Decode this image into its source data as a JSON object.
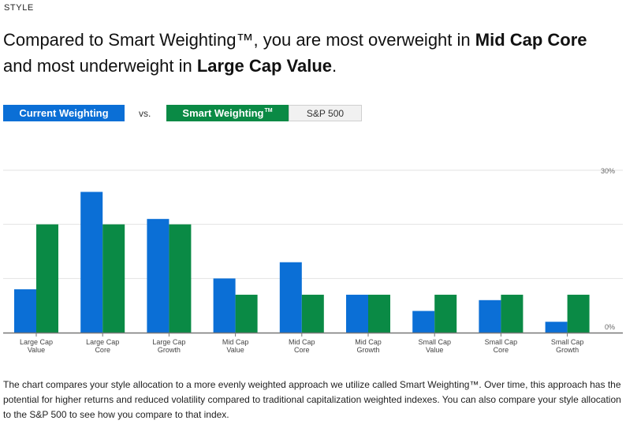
{
  "section_label": "STYLE",
  "headline": {
    "prefix": "Compared to Smart Weighting™, you are most overweight in ",
    "overweight": "Mid Cap Core",
    "middle": " and most underweight in ",
    "underweight": "Large Cap Value",
    "suffix": "."
  },
  "toggle": {
    "current_label": "Current Weighting",
    "vs_label": "vs.",
    "smart_label": "Smart Weighting",
    "smart_tm": "TM",
    "sp_label": "S&P 500"
  },
  "colors": {
    "current": "#0b6fd6",
    "smart": "#0a8a45",
    "grid": "#e3e3e3",
    "axis": "#777777"
  },
  "chart_data": {
    "type": "bar",
    "categories": [
      [
        "Large Cap",
        "Value"
      ],
      [
        "Large Cap",
        "Core"
      ],
      [
        "Large Cap",
        "Growth"
      ],
      [
        "Mid Cap",
        "Value"
      ],
      [
        "Mid Cap",
        "Core"
      ],
      [
        "Mid Cap",
        "Growth"
      ],
      [
        "Small Cap",
        "Value"
      ],
      [
        "Small Cap",
        "Core"
      ],
      [
        "Small Cap",
        "Growth"
      ]
    ],
    "series": [
      {
        "name": "Current Weighting",
        "values": [
          8,
          26,
          21,
          10,
          13,
          7,
          4,
          6,
          2
        ]
      },
      {
        "name": "Smart Weighting",
        "values": [
          20,
          20,
          20,
          7,
          7,
          7,
          7,
          7,
          7
        ]
      }
    ],
    "ylim": [
      0,
      30
    ],
    "yticks": [
      {
        "value": 30,
        "label": "30%"
      },
      {
        "value": 0,
        "label": "0%"
      }
    ],
    "gridlines": [
      0,
      10,
      20,
      30
    ],
    "title": "",
    "xlabel": "",
    "ylabel": ""
  },
  "description": "The chart compares your style allocation to a more evenly weighted approach we utilize called Smart Weighting™. Over time, this approach has the potential for higher returns and reduced volatility compared to traditional capitalization weighted indexes. You can also compare your style allocation to the S&P 500 to see how you compare to that index."
}
